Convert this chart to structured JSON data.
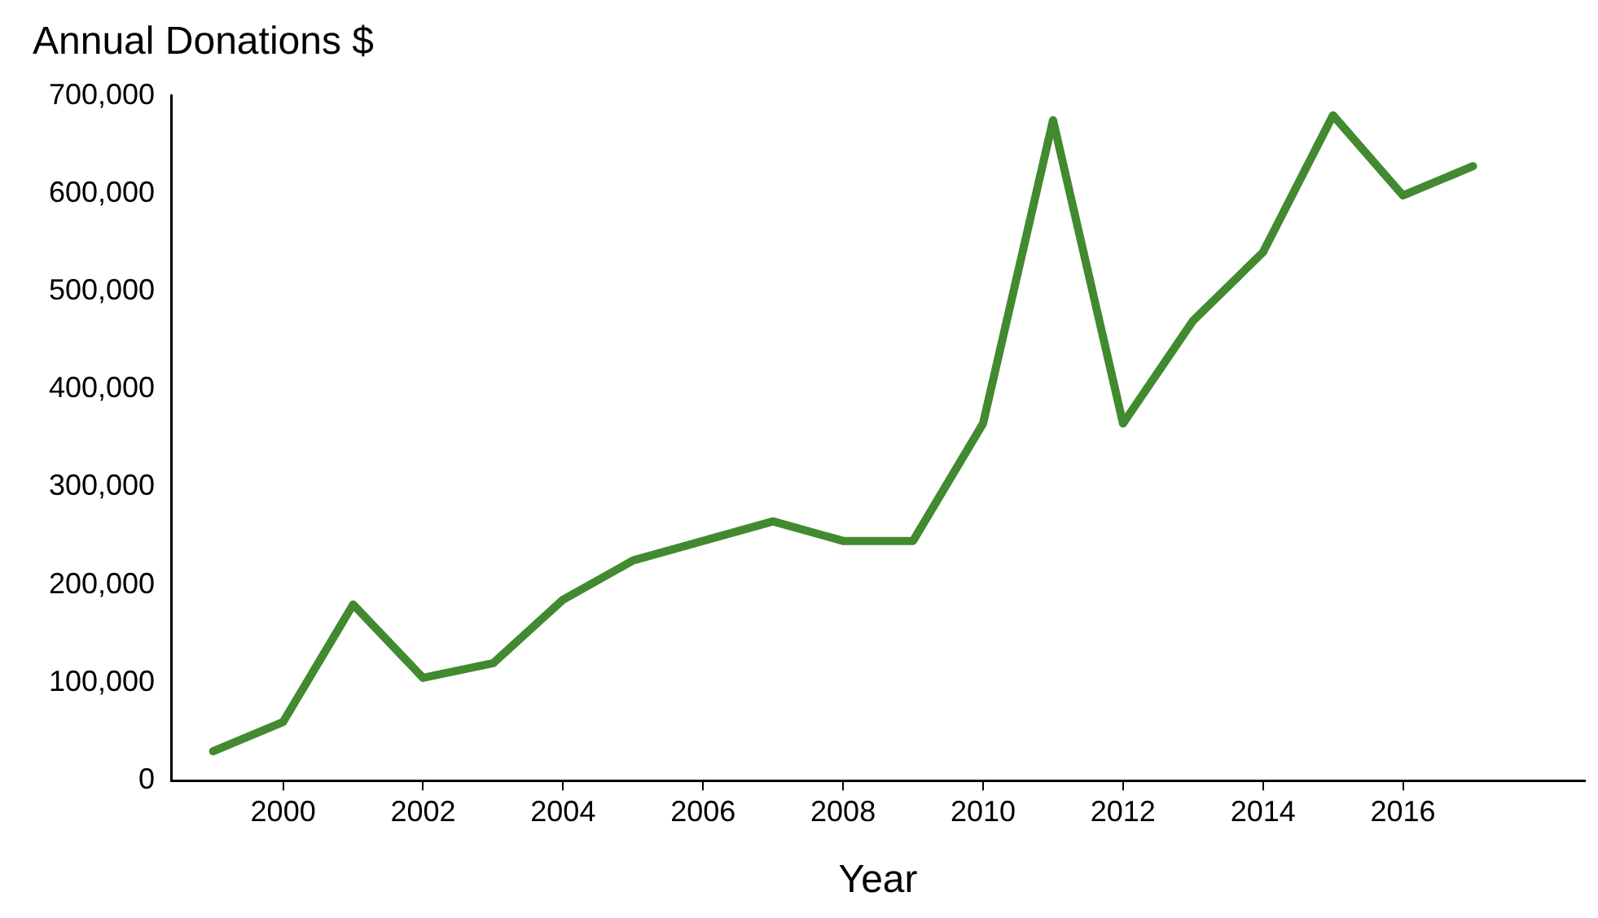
{
  "chart_data": {
    "type": "line",
    "title": "Annual Donations $",
    "xlabel": "Year",
    "x": [
      1999,
      2000,
      2001,
      2002,
      2003,
      2004,
      2005,
      2006,
      2007,
      2008,
      2009,
      2010,
      2011,
      2012,
      2013,
      2014,
      2015,
      2016,
      2017
    ],
    "series": [
      {
        "color": "#428a30",
        "values": [
          30000,
          60000,
          180000,
          105000,
          120000,
          185000,
          225000,
          245000,
          265000,
          245000,
          245000,
          365000,
          675000,
          365000,
          470000,
          540000,
          680000,
          598000,
          628000
        ]
      }
    ],
    "xlim": [
      1998.4,
      2018.6
    ],
    "xticks": [
      2000,
      2002,
      2004,
      2006,
      2008,
      2010,
      2012,
      2014,
      2016
    ],
    "ylim": [
      0,
      700000
    ],
    "yticks": [
      0,
      {
        "value": 100000,
        "label": "100,000"
      },
      {
        "value": 200000,
        "label": "200,000"
      },
      {
        "value": 300000,
        "label": "300,000"
      },
      {
        "value": 400000,
        "label": "400,000"
      },
      {
        "value": 500000,
        "label": "500,000"
      },
      {
        "value": 600000,
        "label": "600,000"
      },
      {
        "value": 700000,
        "label": "700,000"
      }
    ],
    "grid": false,
    "legend": false,
    "marker": "none",
    "line_style": "solid"
  }
}
